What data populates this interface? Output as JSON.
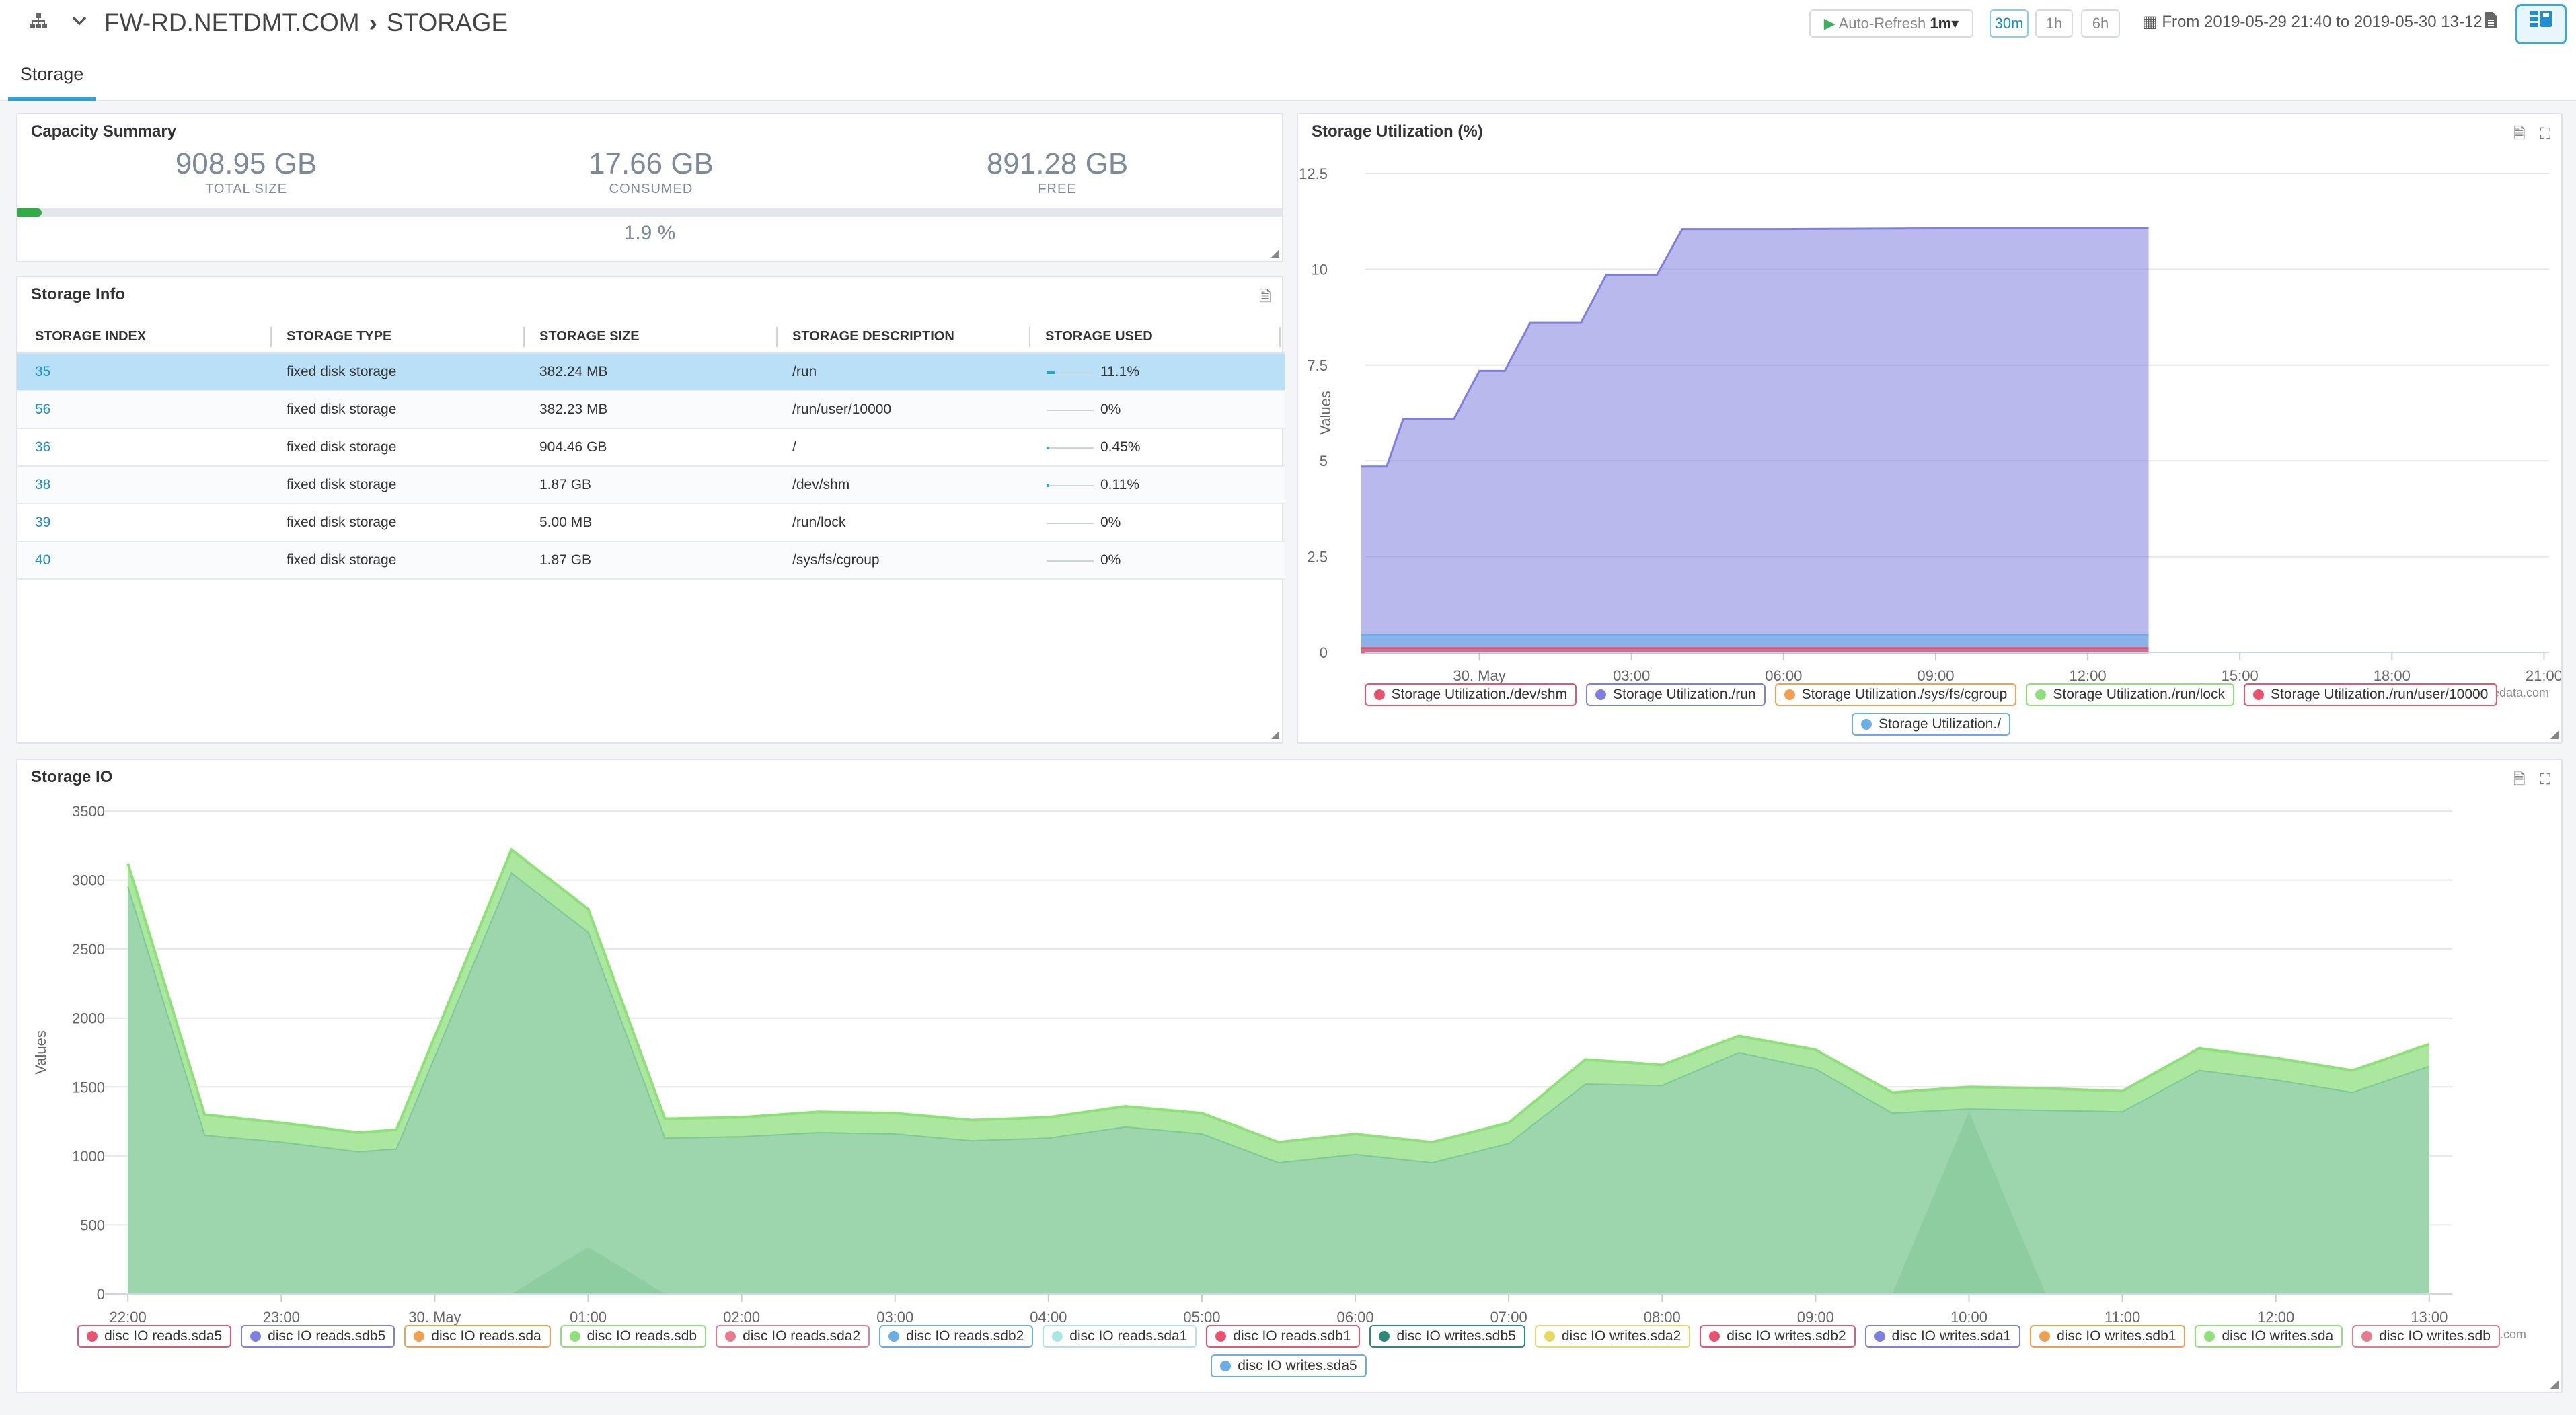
{
  "header": {
    "breadcrumb_device": "FW-RD.NETDMT.COM",
    "breadcrumb_page": "STORAGE",
    "auto_refresh_label": "Auto-Refresh",
    "auto_refresh_value": "1m",
    "range_buttons": [
      "30m",
      "1h",
      "6h"
    ],
    "date_range": "From 2019-05-29 21:40 to 2019-05-30 13-12"
  },
  "tabs": [
    {
      "label": "Storage",
      "active": true
    }
  ],
  "capacity": {
    "title": "Capacity Summary",
    "total_size": "908.95 GB",
    "total_label": "TOTAL SIZE",
    "consumed": "17.66 GB",
    "consumed_label": "CONSUMED",
    "free": "891.28 GB",
    "free_label": "FREE",
    "percent_text": "1.9 %",
    "percent_used": 1.9,
    "bar_color": "#2fae48"
  },
  "storage_info": {
    "title": "Storage Info",
    "columns": [
      "STORAGE INDEX",
      "STORAGE TYPE",
      "STORAGE SIZE",
      "STORAGE DESCRIPTION",
      "STORAGE USED"
    ],
    "rows": [
      {
        "index": "35",
        "type": "fixed disk storage",
        "size": "382.24 MB",
        "description": "/run",
        "used": "11.1%",
        "used_pct": 11.1,
        "selected": true
      },
      {
        "index": "56",
        "type": "fixed disk storage",
        "size": "382.23 MB",
        "description": "/run/user/10000",
        "used": "0%",
        "used_pct": 0
      },
      {
        "index": "36",
        "type": "fixed disk storage",
        "size": "904.46 GB",
        "description": "/",
        "used": "0.45%",
        "used_pct": 0.45
      },
      {
        "index": "38",
        "type": "fixed disk storage",
        "size": "1.87 GB",
        "description": "/dev/shm",
        "used": "0.11%",
        "used_pct": 0.11
      },
      {
        "index": "39",
        "type": "fixed disk storage",
        "size": "5.00 MB",
        "description": "/run/lock",
        "used": "0%",
        "used_pct": 0
      },
      {
        "index": "40",
        "type": "fixed disk storage",
        "size": "1.87 GB",
        "description": "/sys/fs/cgroup",
        "used": "0%",
        "used_pct": 0
      }
    ]
  },
  "utilization_panel": {
    "title": "Storage Utilization (%)",
    "credit": "relatedata.com"
  },
  "io_panel": {
    "title": "Storage IO",
    "credit": "relatedata.com"
  },
  "chart_data": [
    {
      "type": "area",
      "title": "Storage Utilization (%)",
      "ylabel": "Values",
      "xlabel": "",
      "x_ticks": [
        "30. May",
        "03:00",
        "06:00",
        "09:00",
        "12:00",
        "15:00",
        "18:00",
        "21:00"
      ],
      "x_tick_hours": [
        24,
        27,
        30,
        33,
        36,
        39,
        42,
        45
      ],
      "xlim_hours": [
        21.75,
        45.1
      ],
      "ylim": [
        0,
        12.5
      ],
      "y_ticks": [
        0,
        2.5,
        5,
        7.5,
        10,
        12.5
      ],
      "legend_position": "bottom",
      "series": [
        {
          "name": "Storage Utilization./dev/shm",
          "color": "#e8546f",
          "x_hours": [
            21.67,
            37.2
          ],
          "values": [
            0.11,
            0.11
          ]
        },
        {
          "name": "Storage Utilization./run",
          "color": "#7f7fe0",
          "x_hours": [
            21.67,
            22.17,
            22.5,
            23.5,
            24.0,
            24.5,
            25.0,
            26.0,
            26.5,
            27.5,
            28.0,
            28.5,
            30.0,
            33.0,
            36.0,
            37.2
          ],
          "values": [
            4.85,
            4.85,
            6.1,
            6.1,
            7.35,
            7.35,
            8.6,
            8.6,
            9.85,
            9.85,
            11.05,
            11.05,
            11.05,
            11.07,
            11.07,
            11.07
          ]
        },
        {
          "name": "Storage Utilization./sys/fs/cgroup",
          "color": "#f0a050",
          "x_hours": [
            21.67,
            37.2
          ],
          "values": [
            0,
            0
          ]
        },
        {
          "name": "Storage Utilization./run/lock",
          "color": "#8fe07a",
          "x_hours": [
            21.67,
            37.2
          ],
          "values": [
            0,
            0
          ]
        },
        {
          "name": "Storage Utilization./run/user/10000",
          "color": "#e8546f",
          "x_hours": [
            21.67,
            37.2
          ],
          "values": [
            0,
            0
          ]
        },
        {
          "name": "Storage Utilization./",
          "color": "#6aaee8",
          "x_hours": [
            21.67,
            37.2
          ],
          "values": [
            0.45,
            0.45
          ]
        }
      ]
    },
    {
      "type": "area",
      "title": "Storage IO",
      "ylabel": "Values",
      "xlabel": "",
      "x_ticks": [
        "22:00",
        "23:00",
        "30. May",
        "01:00",
        "02:00",
        "03:00",
        "04:00",
        "05:00",
        "06:00",
        "07:00",
        "08:00",
        "09:00",
        "10:00",
        "11:00",
        "12:00",
        "13:00"
      ],
      "x_tick_hours": [
        22,
        23,
        24,
        25,
        26,
        27,
        28,
        29,
        30,
        31,
        32,
        33,
        34,
        35,
        36,
        37
      ],
      "xlim_hours": [
        21.85,
        37.15
      ],
      "ylim": [
        0,
        3500
      ],
      "y_ticks": [
        0,
        500,
        1000,
        1500,
        2000,
        2500,
        3000,
        3500
      ],
      "legend_position": "bottom",
      "stack_x_hours": [
        22.0,
        22.5,
        23.0,
        23.5,
        23.75,
        24.5,
        25.0,
        25.5,
        26.0,
        26.5,
        27.0,
        27.5,
        28.0,
        28.5,
        29.0,
        29.5,
        30.0,
        30.5,
        31.0,
        31.5,
        32.0,
        32.5,
        33.0,
        33.5,
        34.0,
        34.5,
        35.0,
        35.5,
        36.0,
        36.5,
        37.0
      ],
      "series": [
        {
          "name": "disc IO reads.sda5",
          "color": "#e8546f",
          "values": [
            0,
            0,
            0,
            0,
            0,
            0,
            0,
            0,
            0,
            0,
            0,
            0,
            0,
            0,
            0,
            0,
            0,
            0,
            0,
            0,
            0,
            0,
            0,
            0,
            0,
            0,
            0,
            0,
            0,
            0,
            0
          ]
        },
        {
          "name": "disc IO reads.sdb5",
          "color": "#7f7fe0",
          "values": [
            0,
            0,
            0,
            0,
            0,
            0,
            0,
            0,
            0,
            0,
            0,
            0,
            0,
            0,
            0,
            0,
            0,
            0,
            0,
            0,
            0,
            0,
            0,
            0,
            0,
            0,
            0,
            0,
            0,
            0,
            0
          ]
        },
        {
          "name": "disc IO reads.sda",
          "color": "#f0a050",
          "values": [
            0,
            0,
            0,
            0,
            0,
            0,
            0,
            0,
            0,
            0,
            0,
            0,
            0,
            0,
            0,
            0,
            0,
            0,
            0,
            0,
            0,
            0,
            0,
            0,
            0,
            0,
            0,
            0,
            0,
            0,
            0
          ]
        },
        {
          "name": "disc IO reads.sdb",
          "color": "#8fe07a",
          "values": [
            2950,
            1150,
            1100,
            1030,
            1050,
            3050,
            2620,
            1130,
            1140,
            1170,
            1160,
            1110,
            1130,
            1210,
            1160,
            950,
            1010,
            950,
            1090,
            1520,
            1510,
            1750,
            1630,
            1310,
            1340,
            1330,
            1320,
            1620,
            1550,
            1460,
            1650
          ]
        },
        {
          "name": "disc IO reads.sda2",
          "color": "#e87b8c",
          "values": [
            0,
            0,
            0,
            0,
            0,
            0,
            0,
            0,
            0,
            0,
            0,
            0,
            0,
            0,
            0,
            0,
            0,
            0,
            0,
            0,
            0,
            0,
            0,
            0,
            0,
            0,
            0,
            0,
            0,
            0,
            0
          ]
        },
        {
          "name": "disc IO reads.sdb2",
          "color": "#6aaee8",
          "values": [
            0,
            0,
            0,
            0,
            0,
            0,
            0,
            0,
            0,
            0,
            0,
            0,
            0,
            0,
            0,
            0,
            0,
            0,
            0,
            0,
            0,
            0,
            0,
            0,
            0,
            0,
            0,
            0,
            0,
            0,
            0
          ]
        },
        {
          "name": "disc IO reads.sda1",
          "color": "#a8e8e0",
          "values": [
            0,
            0,
            0,
            0,
            0,
            0,
            0,
            0,
            0,
            0,
            0,
            0,
            0,
            0,
            0,
            0,
            0,
            0,
            0,
            0,
            0,
            0,
            0,
            0,
            0,
            0,
            0,
            0,
            0,
            0,
            0
          ]
        },
        {
          "name": "disc IO reads.sdb1",
          "color": "#e8546f",
          "values": [
            0,
            0,
            0,
            0,
            0,
            0,
            0,
            0,
            0,
            0,
            0,
            0,
            0,
            0,
            0,
            0,
            0,
            0,
            0,
            0,
            0,
            0,
            0,
            0,
            0,
            0,
            0,
            0,
            0,
            0,
            0
          ]
        },
        {
          "name": "disc IO writes.sdb5",
          "color": "#2a8a7a",
          "values": [
            0,
            0,
            0,
            0,
            0,
            0,
            0,
            0,
            0,
            0,
            0,
            0,
            0,
            0,
            0,
            0,
            0,
            0,
            0,
            0,
            0,
            0,
            0,
            0,
            0,
            0,
            0,
            0,
            0,
            0,
            0
          ]
        },
        {
          "name": "disc IO writes.sda2",
          "color": "#e8d860",
          "values": [
            0,
            0,
            0,
            0,
            0,
            0,
            0,
            0,
            0,
            0,
            0,
            0,
            0,
            0,
            0,
            0,
            0,
            0,
            0,
            0,
            0,
            0,
            0,
            0,
            0,
            0,
            0,
            0,
            0,
            0,
            0
          ]
        },
        {
          "name": "disc IO writes.sdb2",
          "color": "#e8546f",
          "values": [
            0,
            0,
            0,
            0,
            0,
            0,
            0,
            0,
            0,
            0,
            0,
            0,
            0,
            0,
            0,
            0,
            0,
            0,
            0,
            0,
            0,
            0,
            0,
            0,
            0,
            0,
            0,
            0,
            0,
            0,
            0
          ]
        },
        {
          "name": "disc IO writes.sda1",
          "color": "#7f7fe0",
          "values": [
            0,
            0,
            0,
            0,
            0,
            0,
            0,
            0,
            0,
            0,
            0,
            0,
            0,
            0,
            0,
            0,
            0,
            0,
            0,
            0,
            0,
            0,
            0,
            0,
            0,
            0,
            0,
            0,
            0,
            0,
            0
          ]
        },
        {
          "name": "disc IO writes.sdb1",
          "color": "#f0a050",
          "values": [
            0,
            0,
            0,
            0,
            0,
            0,
            0,
            0,
            0,
            0,
            0,
            0,
            0,
            0,
            0,
            0,
            0,
            0,
            0,
            0,
            0,
            0,
            0,
            0,
            0,
            0,
            0,
            0,
            0,
            0,
            0
          ]
        },
        {
          "name": "disc IO writes.sda",
          "color": "#8fe07a",
          "values": [
            170,
            150,
            140,
            140,
            140,
            170,
            170,
            140,
            140,
            150,
            150,
            150,
            150,
            150,
            150,
            150,
            150,
            150,
            150,
            180,
            150,
            120,
            140,
            150,
            160,
            160,
            150,
            160,
            160,
            160,
            160
          ]
        },
        {
          "name": "disc IO writes.sdb",
          "color": "#e87b8c",
          "values": [
            0,
            0,
            0,
            0,
            0,
            0,
            0,
            0,
            0,
            0,
            0,
            0,
            0,
            0,
            0,
            0,
            0,
            0,
            0,
            0,
            0,
            0,
            0,
            0,
            0,
            0,
            0,
            0,
            0,
            0,
            0
          ]
        },
        {
          "name": "disc IO writes.sda5",
          "color": "#6aaee8",
          "values": [
            0,
            0,
            0,
            0,
            0,
            0,
            0,
            0,
            0,
            0,
            0,
            0,
            0,
            0,
            0,
            0,
            0,
            0,
            0,
            0,
            0,
            0,
            0,
            0,
            0,
            0,
            0,
            0,
            0,
            0,
            0
          ]
        }
      ],
      "spikes": [
        {
          "series": "disc IO reads.sdb",
          "x_hours": [
            24.5,
            25.0,
            25.5
          ],
          "values": [
            0,
            340,
            0
          ]
        },
        {
          "series": "disc IO reads.sdb",
          "x_hours": [
            33.5,
            34.0,
            34.5
          ],
          "values": [
            0,
            1320,
            0
          ]
        }
      ]
    }
  ]
}
